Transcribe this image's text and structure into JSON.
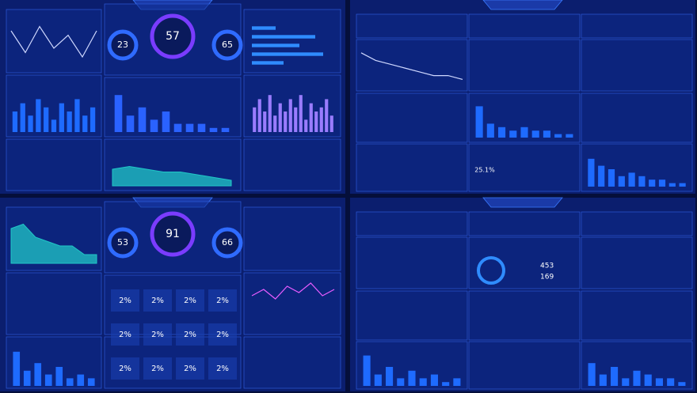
{
  "dashboards": [
    {
      "gauges": [
        23,
        57,
        65
      ],
      "charts": [
        {
          "type": "line",
          "values": [
            8,
            3,
            9,
            4,
            7,
            2,
            8
          ],
          "ylim": [
            0,
            10
          ],
          "color": "#cfd8ff"
        },
        {
          "type": "bar",
          "values": [
            5,
            7,
            4,
            8,
            6,
            3,
            7,
            5,
            8,
            4,
            6
          ],
          "ylim": [
            0,
            10
          ],
          "color": "#1e6bff"
        },
        {
          "type": "bar",
          "values": [
            9,
            4,
            6,
            3,
            5,
            2,
            2,
            2,
            1,
            1
          ],
          "ylim": [
            0,
            10
          ],
          "color": "#2a62ff"
        },
        {
          "type": "hbar",
          "values": [
            3,
            8,
            6,
            9,
            4
          ],
          "ylim": [
            0,
            10
          ],
          "color": "#2f8cff"
        },
        {
          "type": "bar",
          "values": [
            6,
            8,
            5,
            9,
            4,
            7,
            5,
            8,
            6,
            9,
            3,
            7,
            5,
            6,
            8,
            4
          ],
          "ylim": [
            0,
            10
          ],
          "color": "#9a7cff"
        },
        {
          "type": "area",
          "values": [
            6,
            7,
            6,
            5,
            5,
            4,
            3,
            2
          ],
          "ylim": [
            0,
            10
          ],
          "color": "#20c7c7"
        }
      ]
    },
    {
      "percent": "25.1%",
      "charts": [
        {
          "type": "line",
          "values": [
            9,
            7,
            6,
            5,
            4,
            3,
            3,
            2
          ],
          "ylim": [
            0,
            10
          ],
          "color": "#cfd8ff"
        },
        {
          "type": "bar",
          "values": [
            9,
            4,
            3,
            2,
            3,
            2,
            2,
            1,
            1
          ],
          "ylim": [
            0,
            10
          ],
          "color": "#1e6bff"
        },
        {
          "type": "bar",
          "values": [
            8,
            6,
            5,
            3,
            4,
            3,
            2,
            2,
            1,
            1
          ],
          "ylim": [
            0,
            10
          ],
          "color": "#1e6bff"
        }
      ]
    },
    {
      "gauges": [
        53,
        91,
        66
      ],
      "tiles": [
        "2%",
        "2%",
        "2%",
        "2%",
        "2%",
        "2%",
        "2%",
        "2%",
        "2%",
        "2%",
        "2%",
        "2%"
      ],
      "charts": [
        {
          "type": "area",
          "values": [
            8,
            9,
            6,
            5,
            4,
            4,
            2,
            2
          ],
          "ylim": [
            0,
            10
          ],
          "color": "#20c7c7"
        },
        {
          "type": "bar",
          "values": [
            9,
            4,
            6,
            3,
            5,
            2,
            3,
            2
          ],
          "ylim": [
            0,
            10
          ],
          "color": "#1e6bff"
        },
        {
          "type": "line",
          "values": [
            4,
            6,
            3,
            7,
            5,
            8,
            4,
            6
          ],
          "ylim": [
            0,
            10
          ],
          "color": "#e85cff"
        }
      ]
    },
    {
      "stats": [
        453,
        169
      ],
      "charts": [
        {
          "type": "bar",
          "values": [
            8,
            3,
            5,
            2,
            4,
            2,
            3,
            1,
            2
          ],
          "ylim": [
            0,
            10
          ],
          "color": "#1e6bff"
        },
        {
          "type": "bar",
          "values": [
            6,
            3,
            5,
            2,
            4,
            3,
            2,
            2,
            1
          ],
          "ylim": [
            0,
            10
          ],
          "color": "#1e6bff"
        }
      ]
    }
  ]
}
